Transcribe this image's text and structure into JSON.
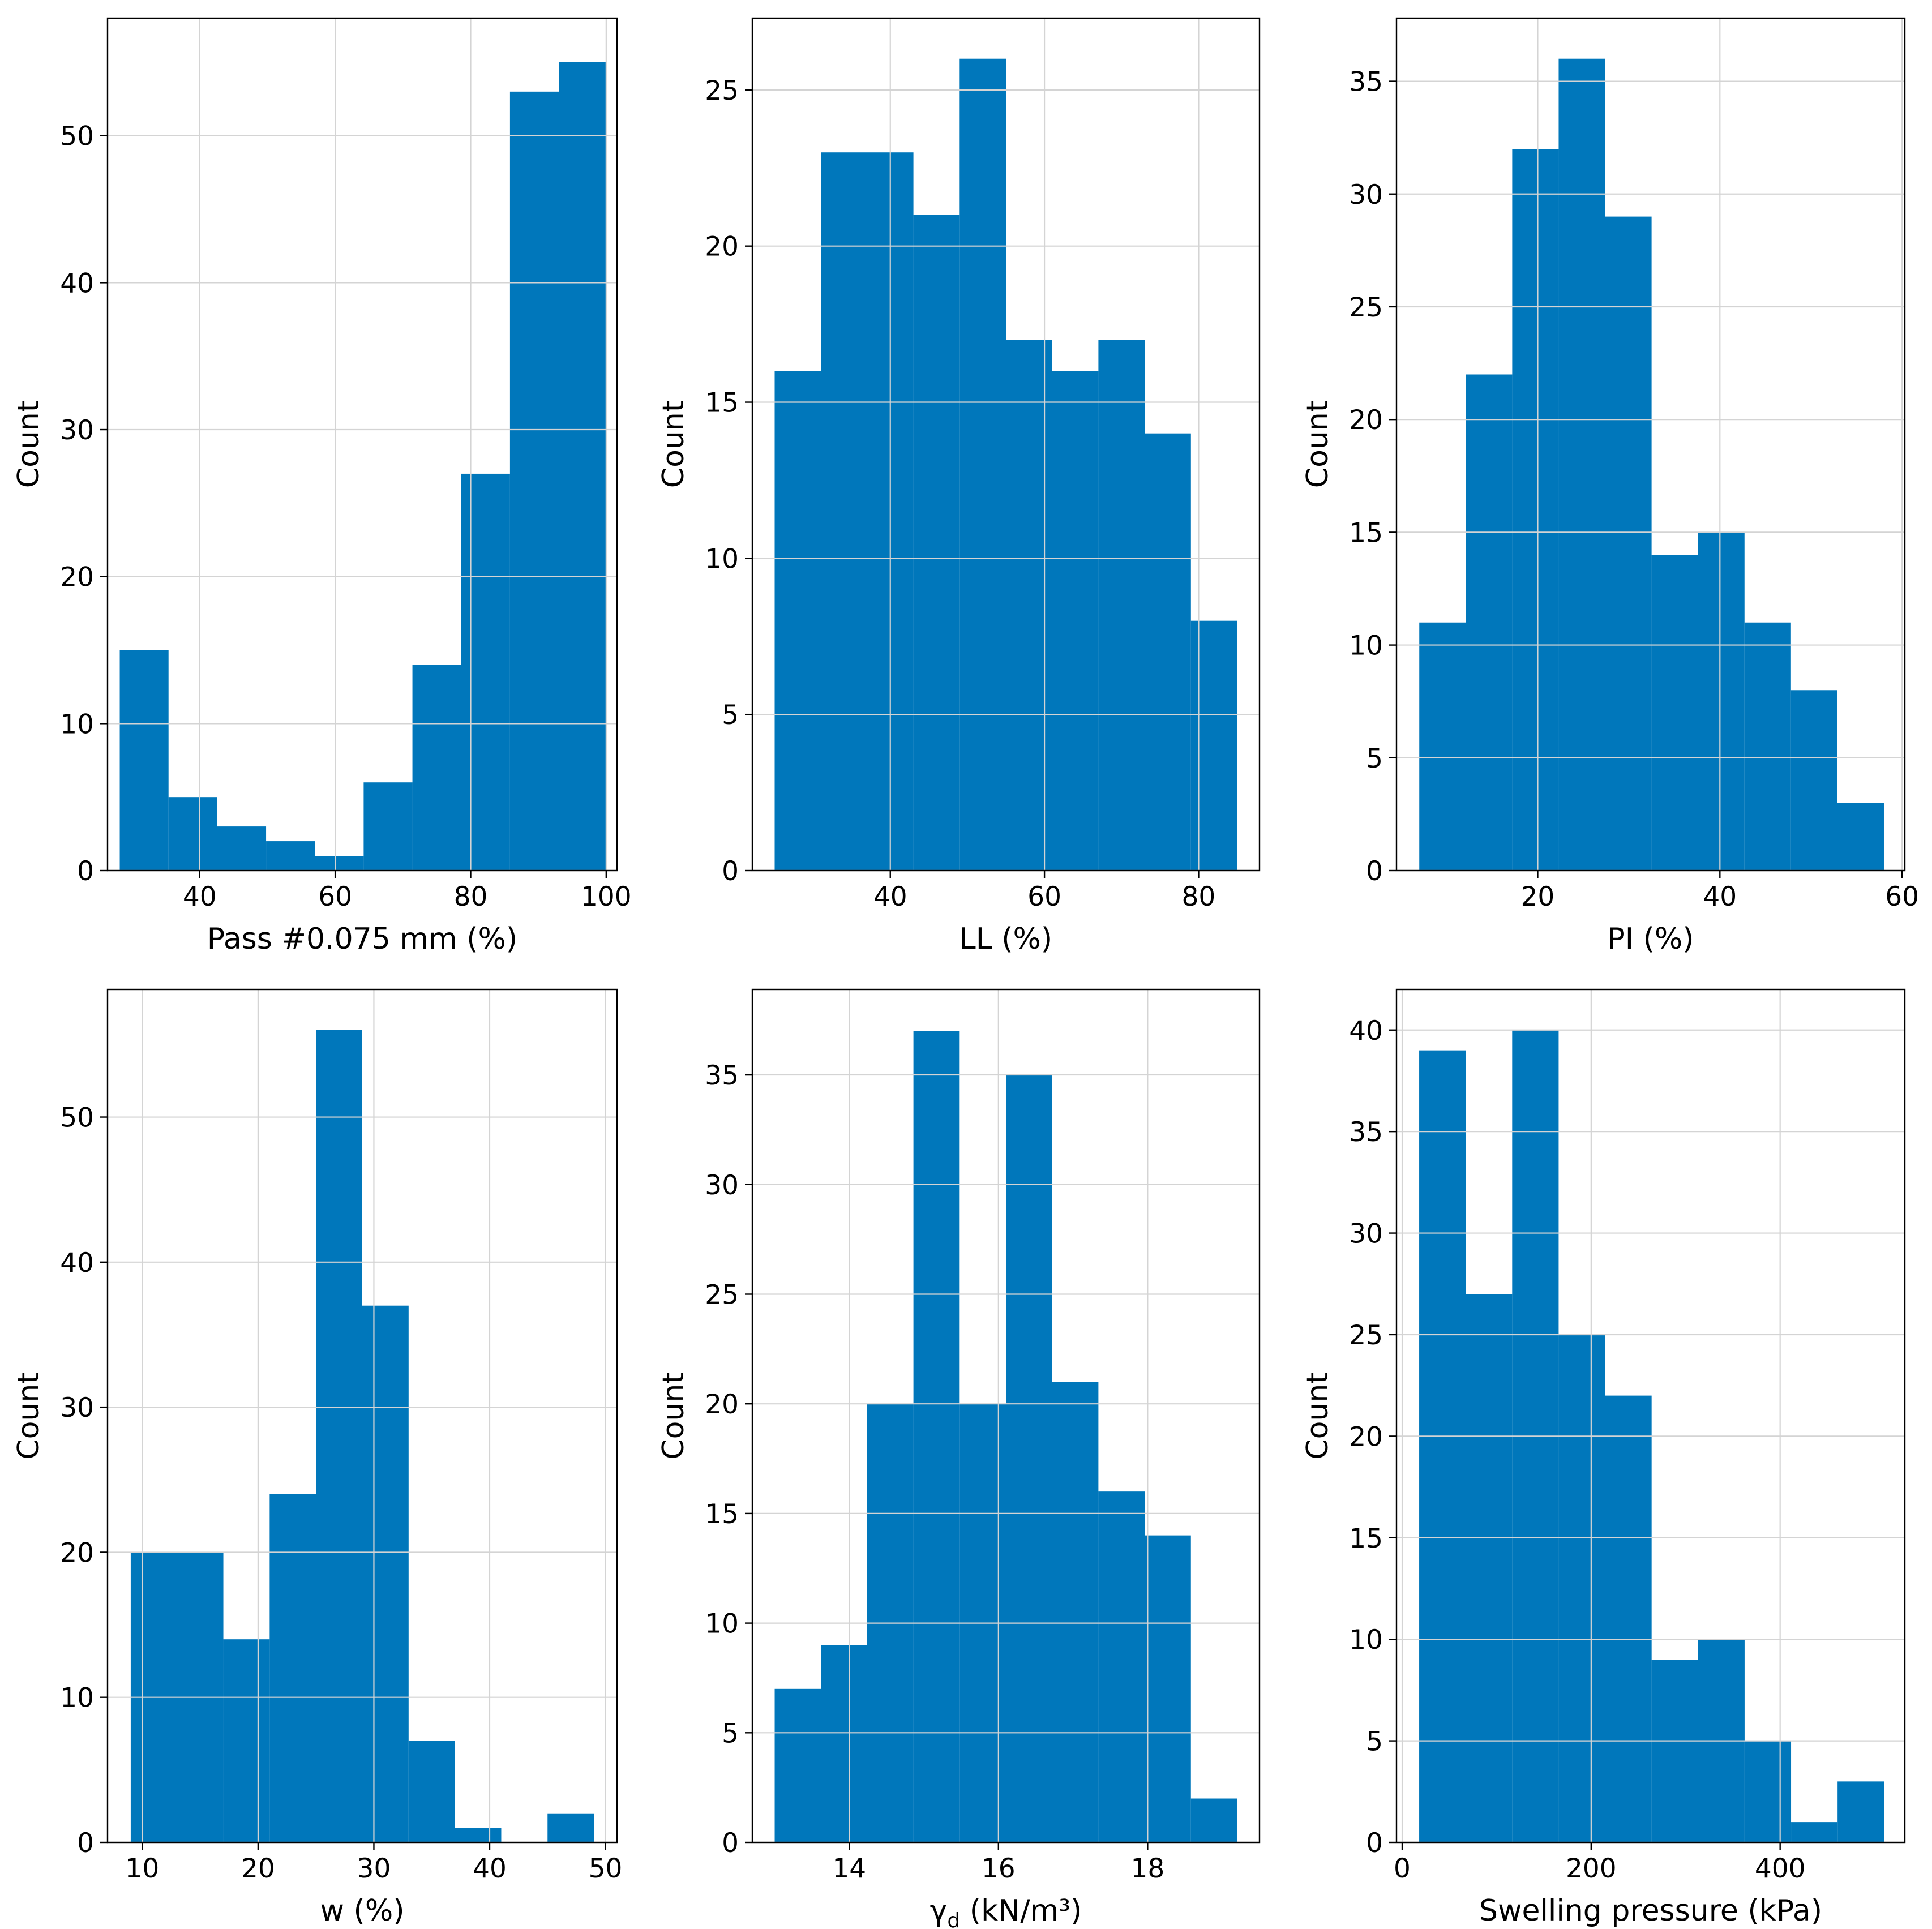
{
  "figure": {
    "bar_color": "#0077bb",
    "grid_color": "#d4d4d4",
    "axis_color": "#000000"
  },
  "chart_data": [
    {
      "type": "bar",
      "xlabel": "Pass #0.075 mm (%)",
      "ylabel": "Count",
      "xlim": [
        26.4,
        101.6
      ],
      "ylim": [
        0,
        58
      ],
      "xticks": [
        40,
        60,
        80,
        100
      ],
      "yticks": [
        0,
        10,
        20,
        30,
        40,
        50
      ],
      "bin_edges": [
        28.2,
        35.4,
        42.6,
        49.8,
        57.0,
        64.2,
        71.4,
        78.6,
        85.8,
        93.0,
        100.0
      ],
      "values": [
        15,
        5,
        3,
        2,
        1,
        6,
        14,
        27,
        53,
        55
      ],
      "grid": true
    },
    {
      "type": "bar",
      "xlabel": "LL (%)",
      "ylabel": "Count",
      "xlim": [
        22.1,
        87.9
      ],
      "ylim": [
        0,
        27.3
      ],
      "xticks": [
        40,
        60,
        80
      ],
      "yticks": [
        0,
        5,
        10,
        15,
        20,
        25
      ],
      "bin_edges": [
        25,
        31,
        37,
        43,
        49,
        55,
        61,
        67,
        73,
        79,
        85
      ],
      "values": [
        16,
        23,
        23,
        21,
        26,
        17,
        16,
        17,
        14,
        8
      ],
      "grid": true
    },
    {
      "type": "bar",
      "xlabel": "PI (%)",
      "ylabel": "Count",
      "xlim": [
        4.5,
        60.3
      ],
      "ylim": [
        0,
        37.8
      ],
      "xticks": [
        20,
        40,
        60
      ],
      "yticks": [
        0,
        5,
        10,
        15,
        20,
        25,
        30,
        35
      ],
      "bin_edges": [
        7.0,
        12.1,
        17.2,
        22.3,
        27.4,
        32.5,
        37.6,
        42.7,
        47.8,
        52.9,
        58.0
      ],
      "values": [
        11,
        22,
        32,
        36,
        29,
        14,
        15,
        11,
        8,
        3
      ],
      "grid": true
    },
    {
      "type": "bar",
      "xlabel": "w (%)",
      "ylabel": "Count",
      "xlim": [
        7.0,
        51.0
      ],
      "ylim": [
        0,
        58.8
      ],
      "xticks": [
        10,
        20,
        30,
        40,
        50
      ],
      "yticks": [
        0,
        10,
        20,
        30,
        40,
        50
      ],
      "bin_edges": [
        9,
        13,
        17,
        21,
        25,
        29,
        33,
        37,
        41,
        45,
        49
      ],
      "values": [
        20,
        20,
        14,
        24,
        56,
        37,
        7,
        1,
        0,
        2
      ],
      "grid": true
    },
    {
      "type": "bar",
      "xlabel": "γd (kN/m³)",
      "ylabel": "Count",
      "xlim": [
        12.7,
        19.5
      ],
      "ylim": [
        0,
        38.9
      ],
      "xticks": [
        14,
        16,
        18
      ],
      "yticks": [
        0,
        5,
        10,
        15,
        20,
        25,
        30,
        35
      ],
      "bin_edges": [
        13.0,
        13.62,
        14.24,
        14.86,
        15.48,
        16.1,
        16.72,
        17.34,
        17.96,
        18.58,
        19.2
      ],
      "values": [
        7,
        9,
        20,
        37,
        20,
        35,
        21,
        16,
        14,
        2
      ],
      "grid": true
    },
    {
      "type": "bar",
      "xlabel": "Swelling pressure (kPa)",
      "ylabel": "Count",
      "xlim": [
        -6,
        532
      ],
      "ylim": [
        0,
        42
      ],
      "xticks": [
        0,
        200,
        400
      ],
      "yticks": [
        0,
        5,
        10,
        15,
        20,
        25,
        30,
        35,
        40
      ],
      "bin_edges": [
        18,
        67.2,
        116.4,
        165.6,
        214.8,
        264.0,
        313.2,
        362.4,
        411.6,
        460.8,
        510.0
      ],
      "values": [
        39,
        27,
        40,
        25,
        22,
        9,
        10,
        5,
        1,
        3
      ],
      "grid": true
    }
  ]
}
